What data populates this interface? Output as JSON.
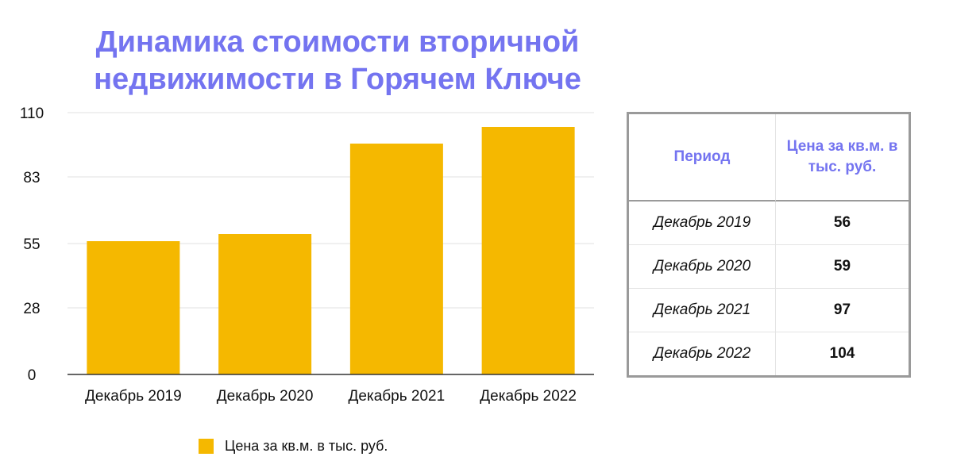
{
  "chart_data": {
    "type": "bar",
    "title": "Динамика стоимости вторичной недвижимости в Горячем Ключе",
    "categories": [
      "Декабрь 2019",
      "Декабрь 2020",
      "Декабрь 2021",
      "Декабрь 2022"
    ],
    "series": [
      {
        "name": "Цена за кв.м. в тыс. руб.",
        "values": [
          56,
          59,
          97,
          104
        ],
        "color": "#f5b800"
      }
    ],
    "yticks": [
      "0",
      "28",
      "55",
      "83",
      "110"
    ],
    "ylim": [
      0,
      110
    ],
    "grid": true,
    "legend": "bottom"
  },
  "table": {
    "headers": [
      "Период",
      "Цена за кв.м. в тыс. руб."
    ],
    "rows": [
      {
        "period": "Декабрь 2019",
        "value": "56"
      },
      {
        "period": "Декабрь 2020",
        "value": "59"
      },
      {
        "period": "Декабрь 2021",
        "value": "97"
      },
      {
        "period": "Декабрь 2022",
        "value": "104"
      }
    ]
  },
  "colors": {
    "title": "#7474f0",
    "bar": "#f5b800",
    "grid": "#e2e2e2",
    "axis": "#333333",
    "table_border": "#9a9a9a"
  }
}
